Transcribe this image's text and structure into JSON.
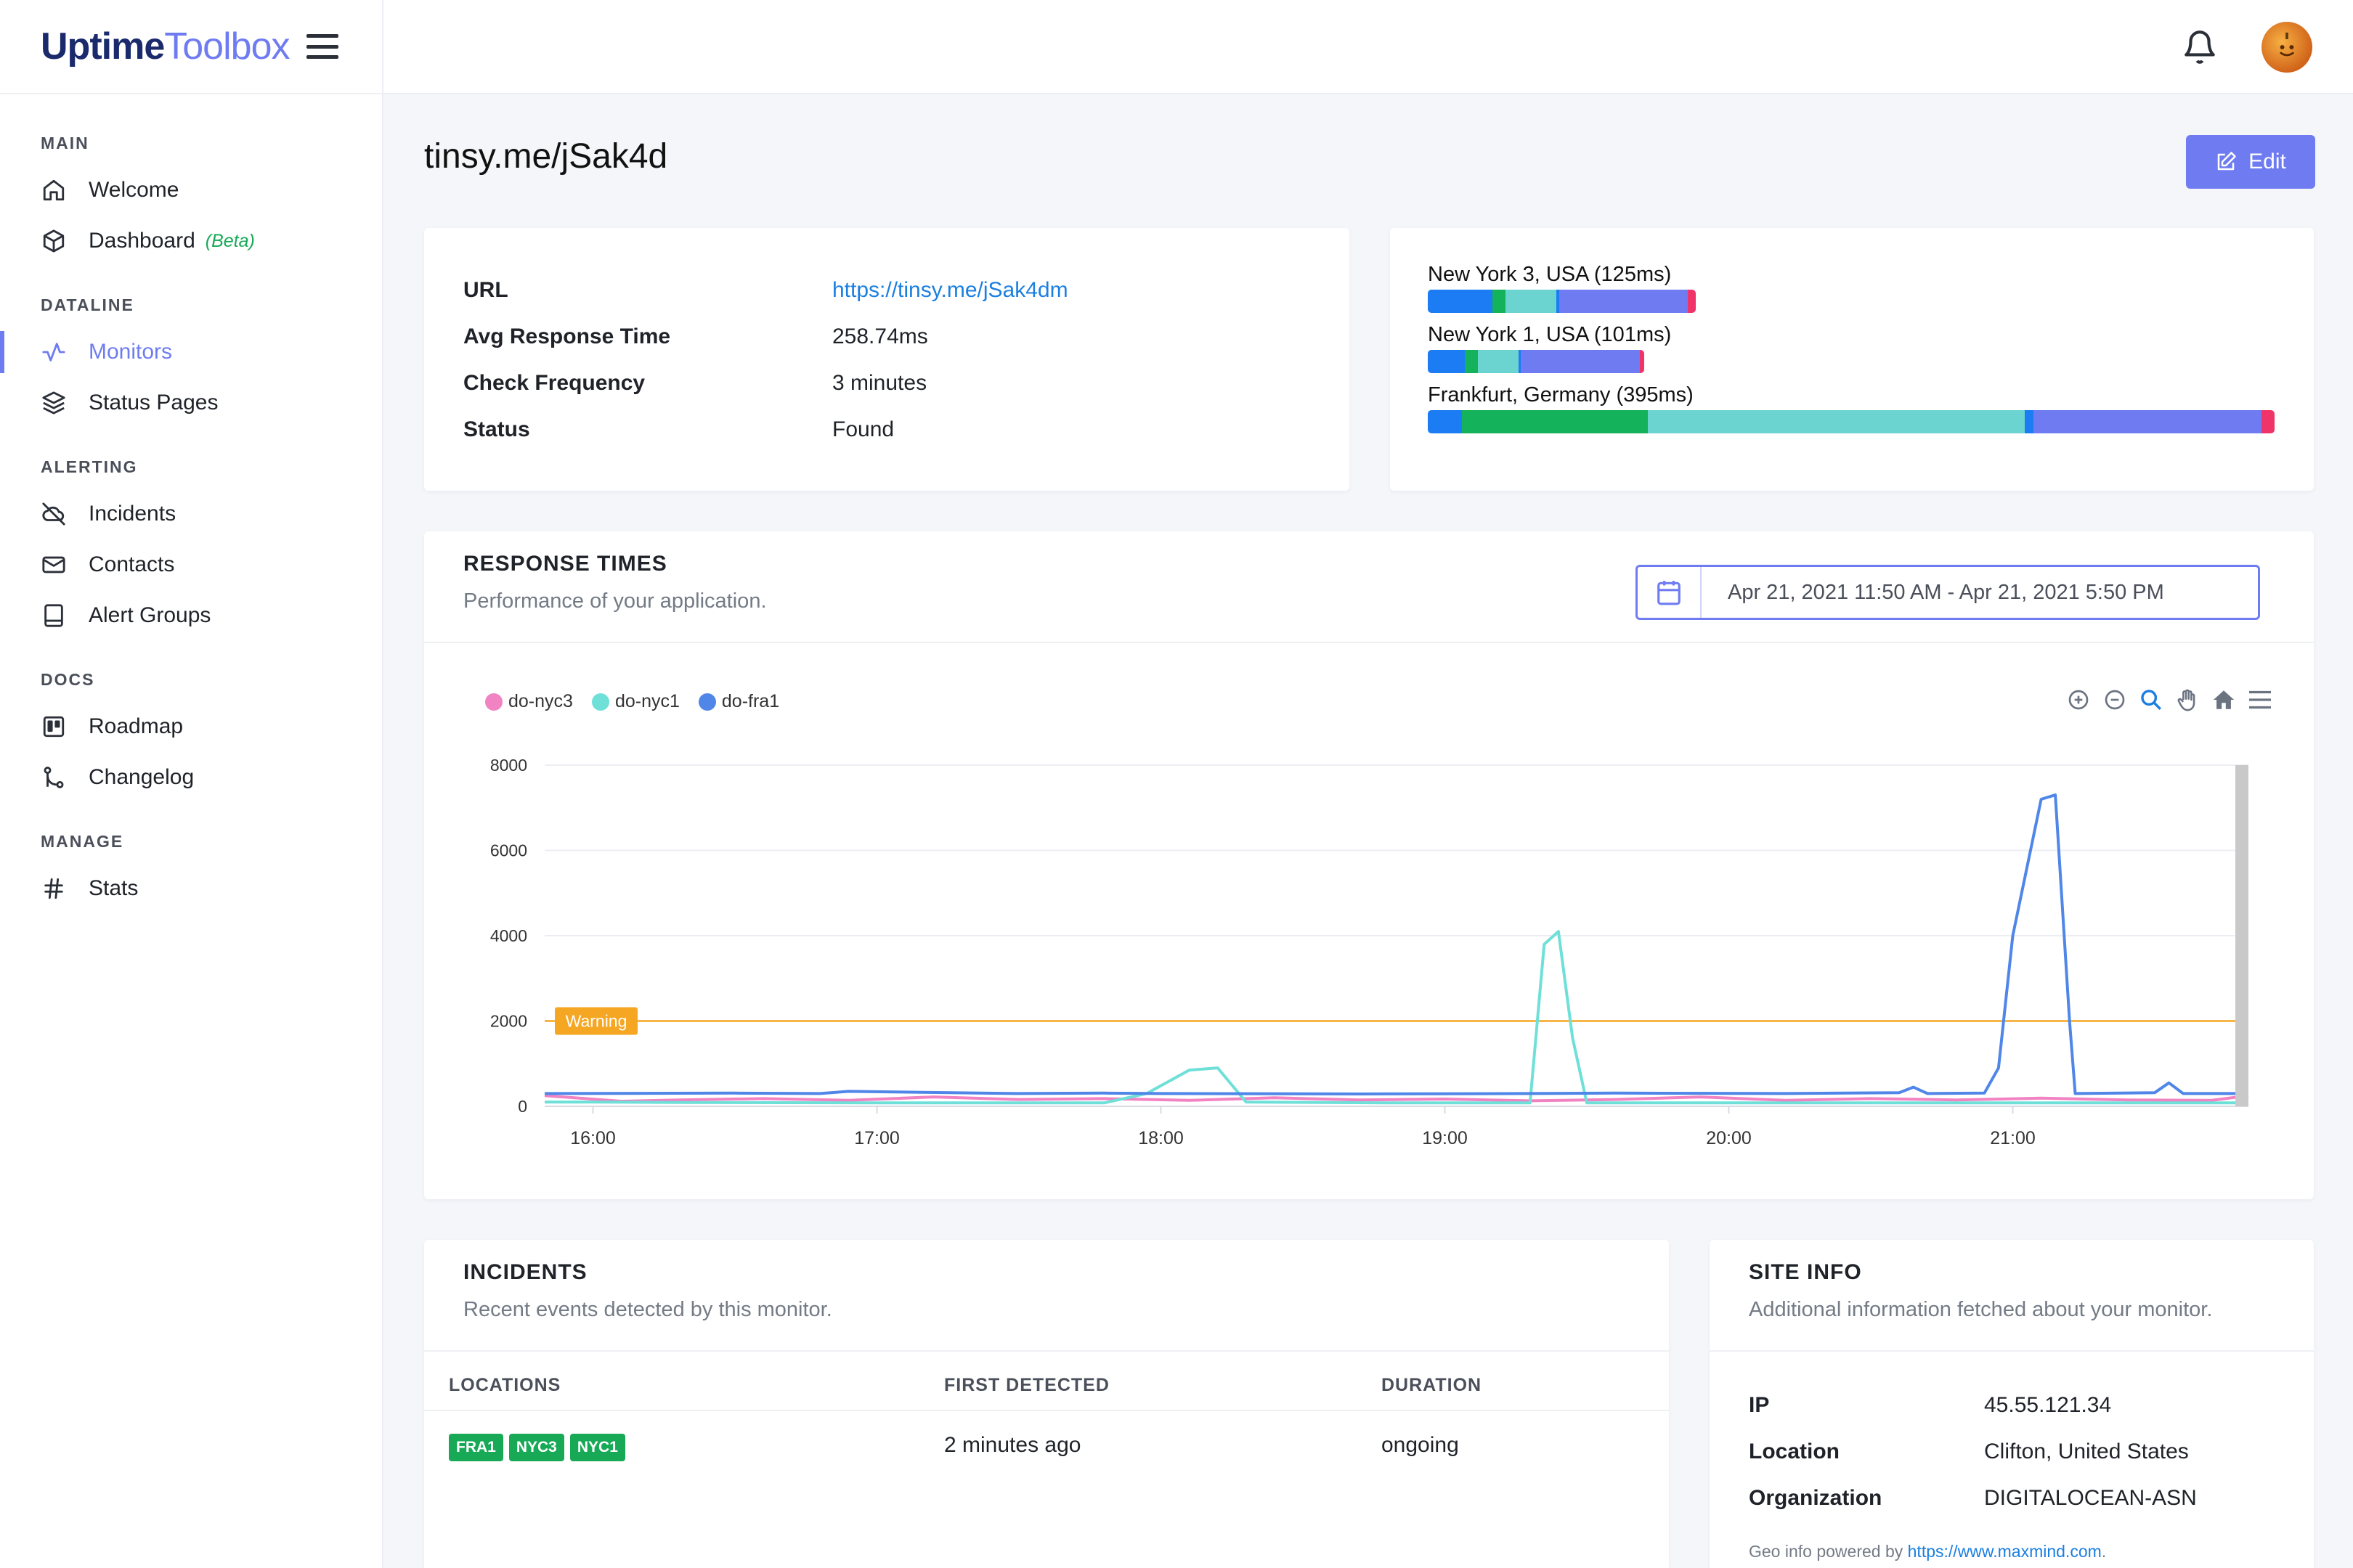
{
  "brand": {
    "main": "Uptime",
    "sub": "Toolbox"
  },
  "sidebar": {
    "sections": [
      {
        "heading": "MAIN",
        "items": [
          {
            "label": "Welcome",
            "icon": "home-icon"
          },
          {
            "label": "Dashboard",
            "badge": "(Beta)",
            "icon": "cube-icon"
          }
        ]
      },
      {
        "heading": "DATALINE",
        "items": [
          {
            "label": "Monitors",
            "icon": "activity-icon",
            "active": true
          },
          {
            "label": "Status Pages",
            "icon": "layers-icon"
          }
        ]
      },
      {
        "heading": "ALERTING",
        "items": [
          {
            "label": "Incidents",
            "icon": "cloud-off-icon"
          },
          {
            "label": "Contacts",
            "icon": "mail-icon"
          },
          {
            "label": "Alert Groups",
            "icon": "book-icon"
          }
        ]
      },
      {
        "heading": "DOCS",
        "items": [
          {
            "label": "Roadmap",
            "icon": "trello-icon"
          },
          {
            "label": "Changelog",
            "icon": "git-merge-icon"
          }
        ]
      },
      {
        "heading": "MANAGE",
        "items": [
          {
            "label": "Stats",
            "icon": "hash-icon"
          }
        ]
      }
    ]
  },
  "page": {
    "title": "tinsy.me/jSak4d",
    "edit_label": "Edit"
  },
  "monitor": {
    "rows": [
      {
        "label": "URL",
        "value": "https://tinsy.me/jSak4dm",
        "link": true
      },
      {
        "label": "Avg Response Time",
        "value": "258.74ms"
      },
      {
        "label": "Check Frequency",
        "value": "3 minutes"
      },
      {
        "label": "Status",
        "value": "Found"
      }
    ]
  },
  "locations": [
    {
      "label": "New York 3, USA (125ms)",
      "total_ms": 125,
      "segments": [
        {
          "color": "#1b7cf4",
          "pct": 0.24
        },
        {
          "color": "#14b25a",
          "pct": 0.05
        },
        {
          "color": "#6cd4d0",
          "pct": 0.19
        },
        {
          "color": "#1b7cf4",
          "pct": 0.01
        },
        {
          "color": "#6f7cf1",
          "pct": 0.48
        },
        {
          "color": "#f0346a",
          "pct": 0.03
        }
      ]
    },
    {
      "label": "New York 1, USA (101ms)",
      "total_ms": 101,
      "segments": [
        {
          "color": "#1b7cf4",
          "pct": 0.17
        },
        {
          "color": "#14b25a",
          "pct": 0.06
        },
        {
          "color": "#6cd4d0",
          "pct": 0.19
        },
        {
          "color": "#1b7cf4",
          "pct": 0.01
        },
        {
          "color": "#6f7cf1",
          "pct": 0.55
        },
        {
          "color": "#f0346a",
          "pct": 0.02
        }
      ]
    },
    {
      "label": "Frankfurt, Germany (395ms)",
      "total_ms": 395,
      "segments": [
        {
          "color": "#1b7cf4",
          "pct": 0.04
        },
        {
          "color": "#14b25a",
          "pct": 0.22
        },
        {
          "color": "#6cd4d0",
          "pct": 0.445
        },
        {
          "color": "#1b7cf4",
          "pct": 0.01
        },
        {
          "color": "#6f7cf1",
          "pct": 0.27
        },
        {
          "color": "#f0346a",
          "pct": 0.015
        }
      ]
    }
  ],
  "response": {
    "title": "RESPONSE TIMES",
    "subtitle": "Performance of your application.",
    "date_range": "Apr 21, 2021 11:50 AM - Apr 21, 2021 5:50 PM"
  },
  "chart_data": {
    "type": "line",
    "ylim": [
      0,
      8000
    ],
    "xlim": [
      15.83,
      21.83
    ],
    "y_ticks": [
      0,
      2000,
      4000,
      6000,
      8000
    ],
    "x_ticks": [
      {
        "v": 16,
        "label": "16:00"
      },
      {
        "v": 17,
        "label": "17:00"
      },
      {
        "v": 18,
        "label": "18:00"
      },
      {
        "v": 19,
        "label": "19:00"
      },
      {
        "v": 20,
        "label": "20:00"
      },
      {
        "v": 21,
        "label": "21:00"
      }
    ],
    "annotation": {
      "label": "Warning",
      "y": 2000,
      "color": "#f5a623"
    },
    "legend_placement": "top-left",
    "series": [
      {
        "name": "do-nyc3",
        "color": "#f183c3",
        "points": [
          [
            15.83,
            250
          ],
          [
            16.1,
            120
          ],
          [
            16.3,
            150
          ],
          [
            16.6,
            180
          ],
          [
            16.9,
            140
          ],
          [
            17.2,
            220
          ],
          [
            17.5,
            160
          ],
          [
            17.8,
            180
          ],
          [
            18.1,
            140
          ],
          [
            18.4,
            200
          ],
          [
            18.7,
            150
          ],
          [
            19.0,
            170
          ],
          [
            19.3,
            130
          ],
          [
            19.6,
            160
          ],
          [
            19.9,
            220
          ],
          [
            20.2,
            140
          ],
          [
            20.5,
            180
          ],
          [
            20.8,
            150
          ],
          [
            21.1,
            190
          ],
          [
            21.4,
            150
          ],
          [
            21.7,
            140
          ],
          [
            21.83,
            250
          ]
        ]
      },
      {
        "name": "do-nyc1",
        "color": "#6ee0d8",
        "points": [
          [
            15.83,
            100
          ],
          [
            16.0,
            100
          ],
          [
            16.3,
            90
          ],
          [
            17.0,
            80
          ],
          [
            17.8,
            80
          ],
          [
            17.95,
            300
          ],
          [
            18.1,
            850
          ],
          [
            18.2,
            900
          ],
          [
            18.3,
            100
          ],
          [
            18.8,
            80
          ],
          [
            19.3,
            80
          ],
          [
            19.35,
            3800
          ],
          [
            19.4,
            4100
          ],
          [
            19.45,
            1600
          ],
          [
            19.5,
            80
          ],
          [
            20.5,
            80
          ],
          [
            21.5,
            80
          ],
          [
            21.83,
            80
          ]
        ]
      },
      {
        "name": "do-fra1",
        "color": "#4f86e8",
        "points": [
          [
            15.83,
            300
          ],
          [
            16.5,
            310
          ],
          [
            16.8,
            300
          ],
          [
            16.9,
            350
          ],
          [
            17.5,
            300
          ],
          [
            17.8,
            310
          ],
          [
            18.0,
            300
          ],
          [
            18.7,
            290
          ],
          [
            19.3,
            300
          ],
          [
            19.6,
            310
          ],
          [
            20.2,
            300
          ],
          [
            20.6,
            320
          ],
          [
            20.65,
            450
          ],
          [
            20.7,
            300
          ],
          [
            20.9,
            310
          ],
          [
            20.95,
            900
          ],
          [
            21.0,
            4000
          ],
          [
            21.1,
            7200
          ],
          [
            21.15,
            7300
          ],
          [
            21.2,
            2000
          ],
          [
            21.22,
            300
          ],
          [
            21.5,
            320
          ],
          [
            21.55,
            550
          ],
          [
            21.6,
            300
          ],
          [
            21.83,
            300
          ]
        ]
      }
    ]
  },
  "incidents": {
    "title": "INCIDENTS",
    "subtitle": "Recent events detected by this monitor.",
    "columns": [
      "LOCATIONS",
      "FIRST DETECTED",
      "DURATION"
    ],
    "rows": [
      {
        "locations": [
          "FRA1",
          "NYC3",
          "NYC1"
        ],
        "first_detected": "2 minutes ago",
        "duration": "ongoing"
      }
    ]
  },
  "site_info": {
    "title": "SITE INFO",
    "subtitle": "Additional information fetched about your monitor.",
    "rows": [
      {
        "label": "IP",
        "value": "45.55.121.34"
      },
      {
        "label": "Location",
        "value": "Clifton, United States"
      },
      {
        "label": "Organization",
        "value": "DIGITALOCEAN-ASN"
      }
    ],
    "geo_prefix": "Geo info powered by",
    "geo_link": "https://www.maxmind.com",
    "geo_suffix": "."
  }
}
